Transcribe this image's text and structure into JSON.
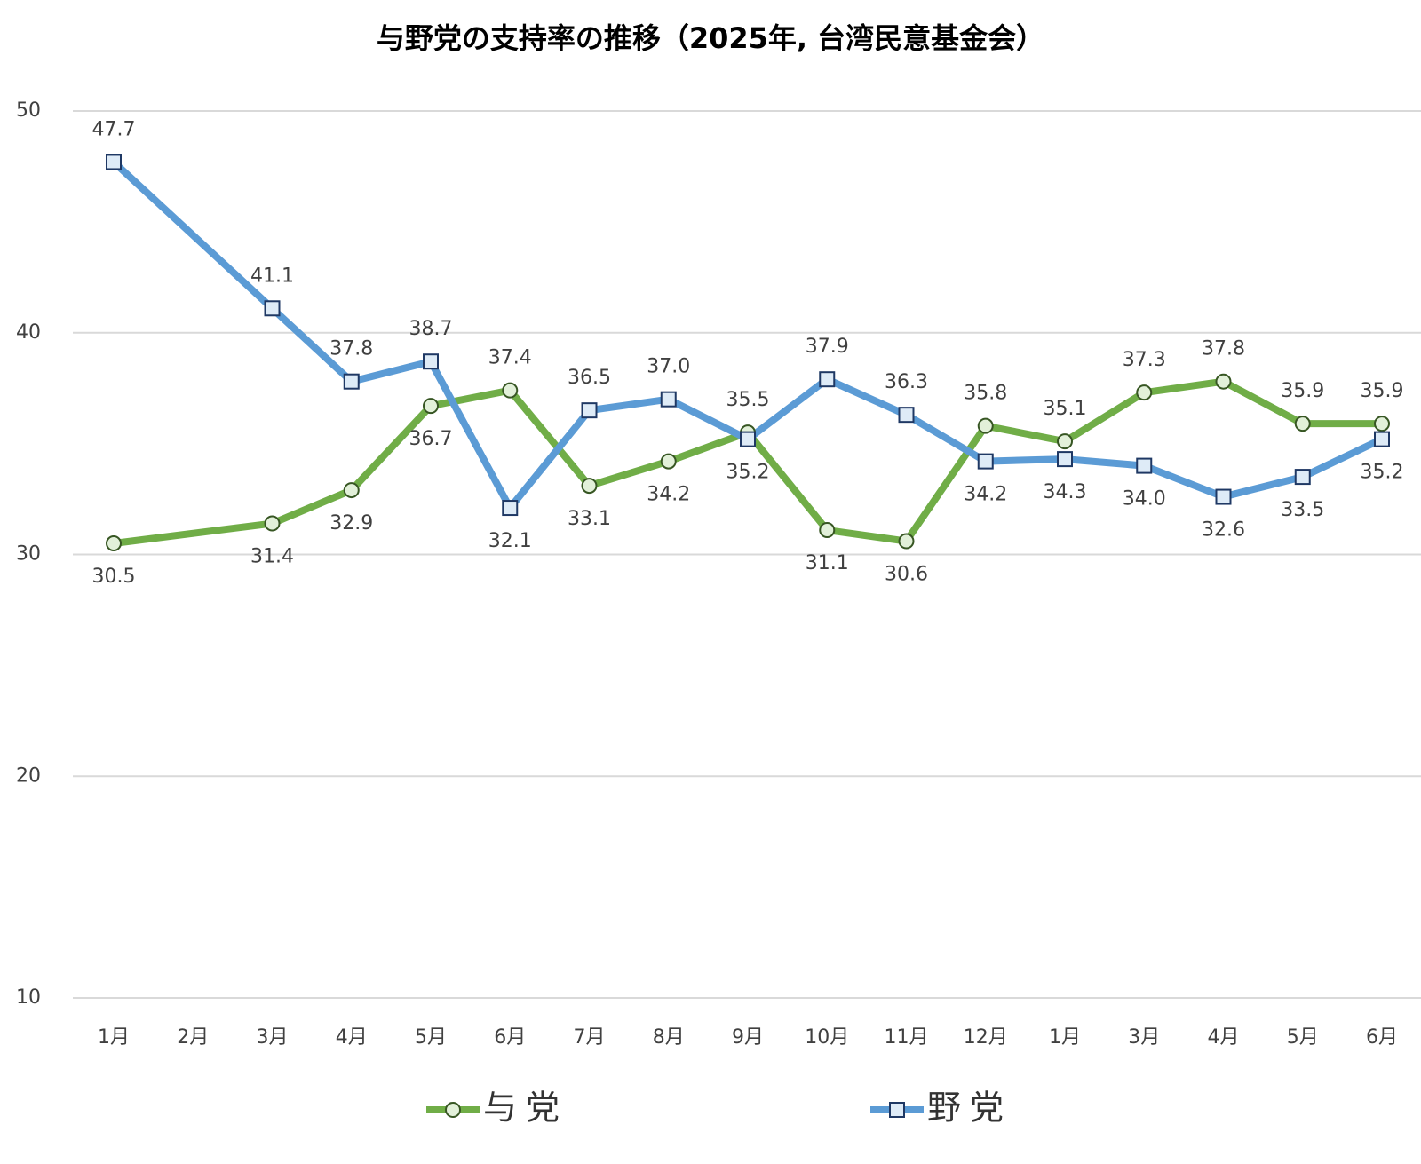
{
  "chart_data": {
    "type": "line",
    "title": "与野党の支持率の推移（2025年, 台湾民意基金会）",
    "categories": [
      "1月",
      "2月",
      "3月",
      "4月",
      "5月",
      "6月",
      "7月",
      "8月",
      "9月",
      "10月",
      "11月",
      "12月",
      "1月",
      "3月",
      "4月",
      "5月",
      "6月"
    ],
    "series": [
      {
        "name": "与党",
        "color": "#70ad47",
        "marker": "circle",
        "values": [
          30.5,
          null,
          31.4,
          32.9,
          36.7,
          37.4,
          33.1,
          34.2,
          35.5,
          31.1,
          30.6,
          35.8,
          35.1,
          37.3,
          37.8,
          35.9,
          35.9
        ],
        "value_labels": [
          "30.5",
          null,
          "31.4",
          "32.9",
          "36.7",
          "37.4",
          "33.1",
          "34.2",
          "35.5",
          "31.1",
          "30.6",
          "35.8",
          "35.1",
          "37.3",
          "37.8",
          "35.9",
          "35.9"
        ]
      },
      {
        "name": "野党",
        "color": "#5b9bd5",
        "marker": "square",
        "values": [
          47.7,
          null,
          41.1,
          37.8,
          38.7,
          32.1,
          36.5,
          37.0,
          35.2,
          37.9,
          36.3,
          34.2,
          34.3,
          34.0,
          32.6,
          33.5,
          35.2
        ],
        "value_labels": [
          "47.7",
          null,
          "41.1",
          "37.8",
          "38.7",
          "32.1",
          "36.5",
          "37.0",
          "35.2",
          "37.9",
          "36.3",
          "34.2",
          "34.3",
          "34.0",
          "32.6",
          "33.5",
          "35.2"
        ]
      }
    ],
    "ylim": [
      10,
      50
    ],
    "yticks": [
      10,
      20,
      30,
      40,
      50
    ],
    "grid": true,
    "legend": "bottom"
  }
}
